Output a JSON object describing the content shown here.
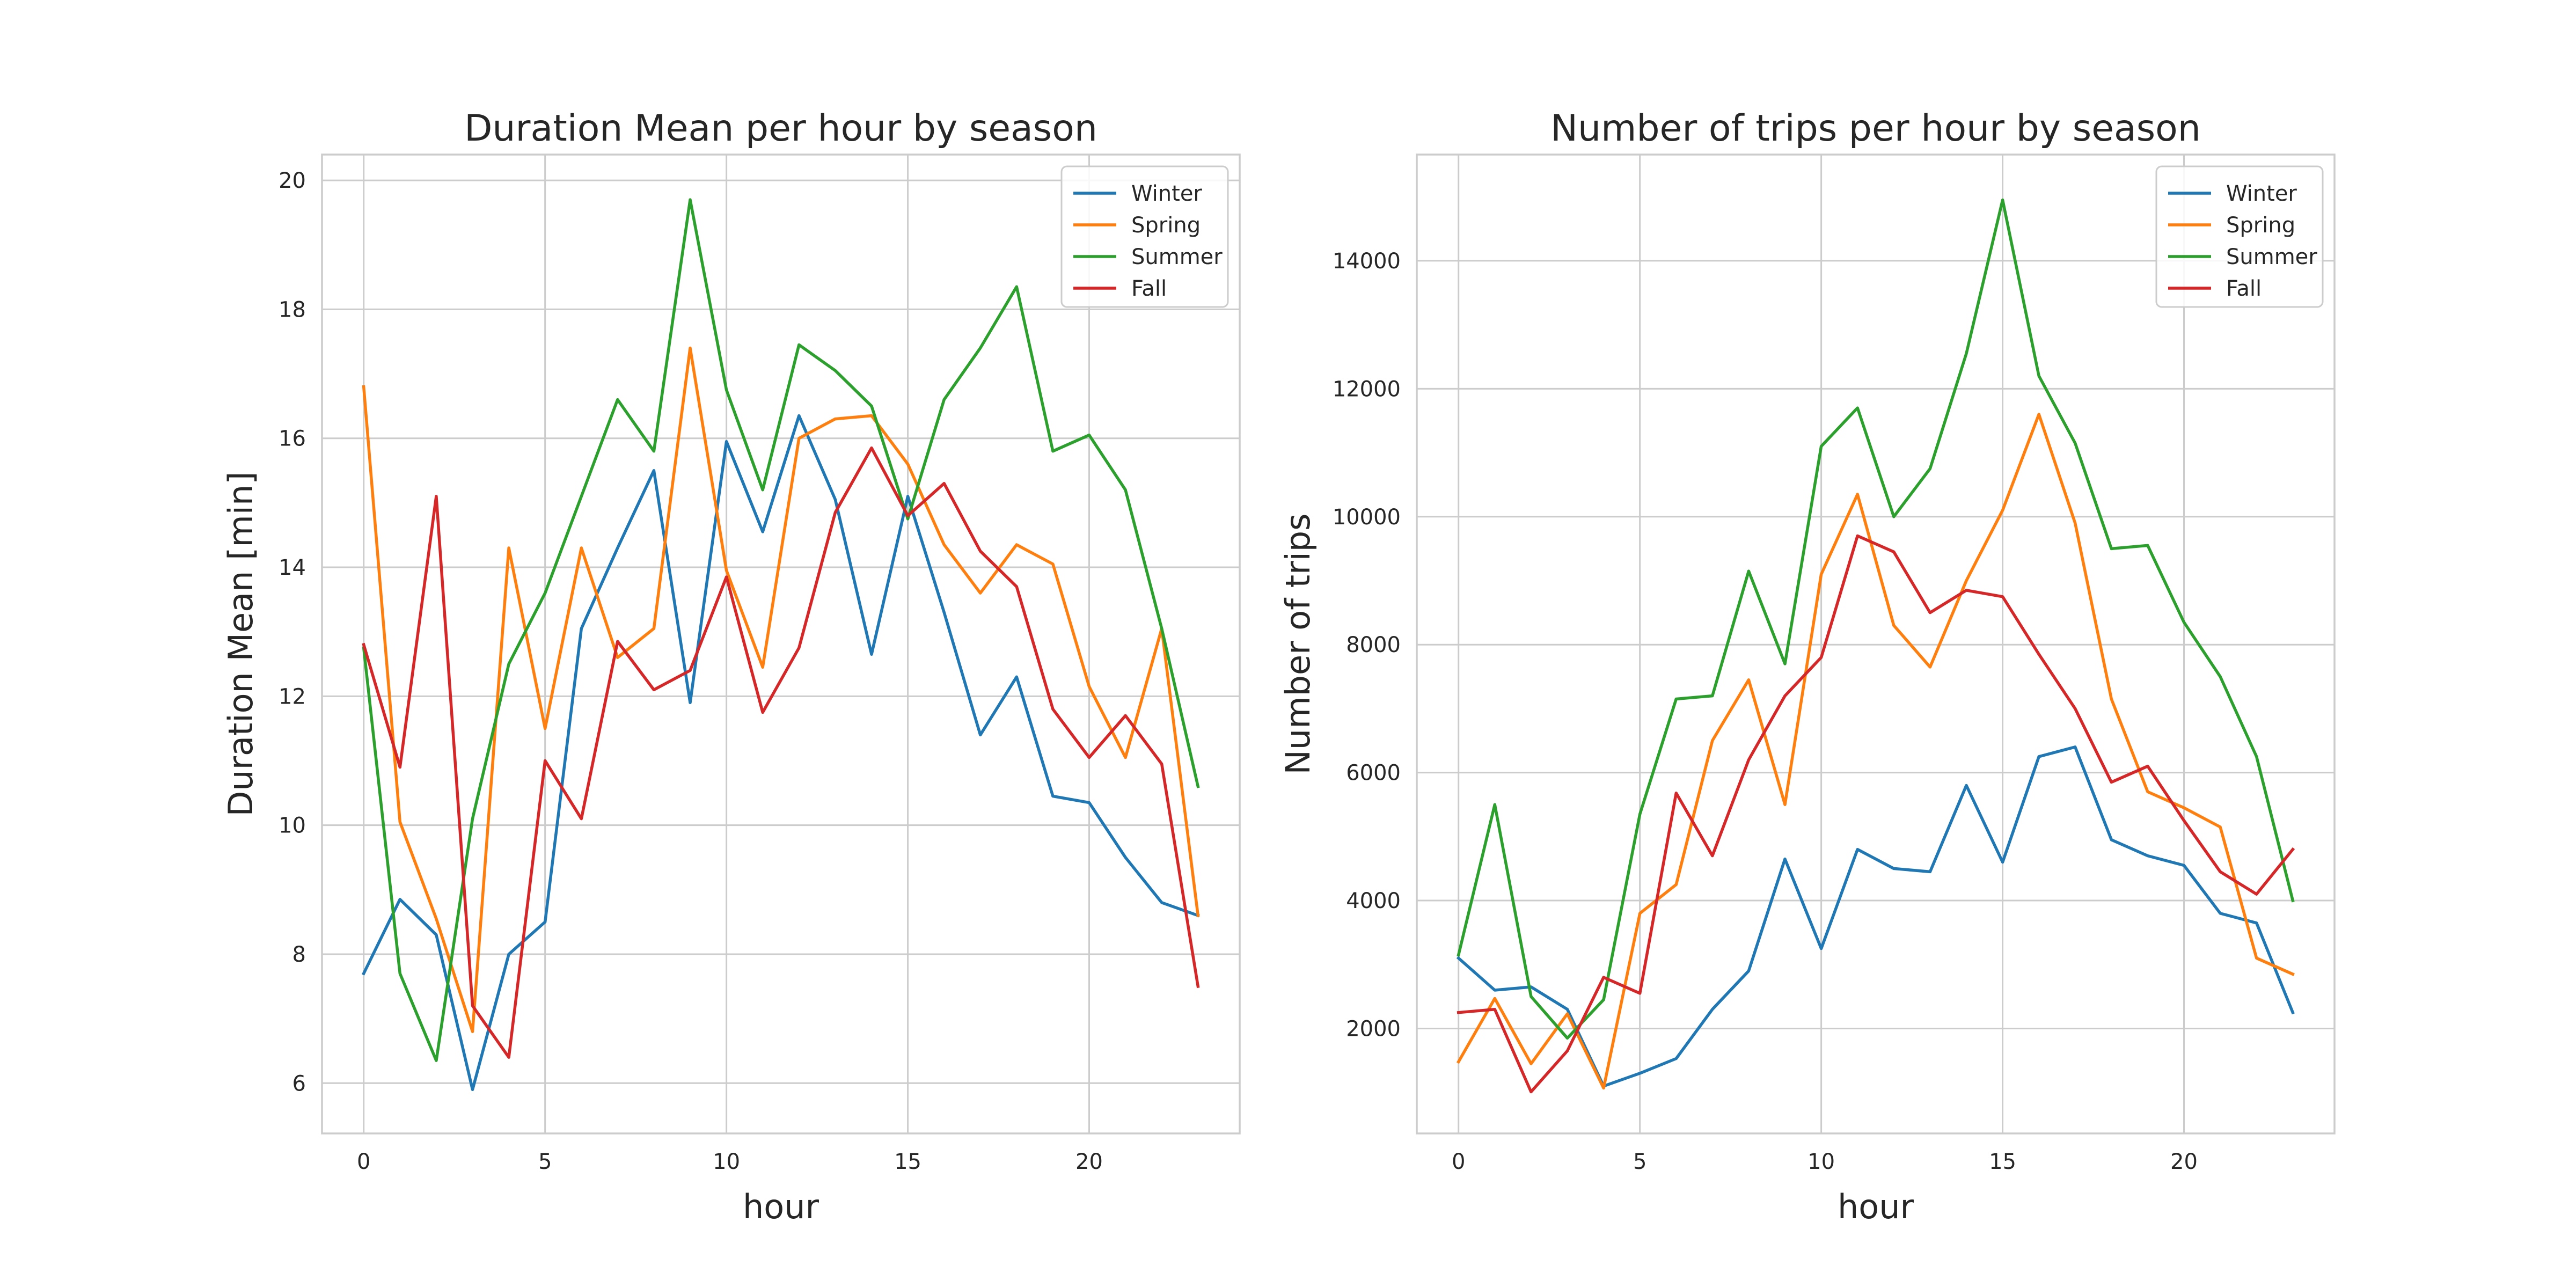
{
  "chart_data": [
    {
      "type": "line",
      "title": "Duration Mean per hour by season",
      "xlabel": "hour",
      "ylabel": "Duration Mean [min]",
      "xlim": [
        -1.15,
        24.15
      ],
      "ylim": [
        5.22,
        20.4
      ],
      "xticks": [
        0,
        5,
        10,
        15,
        20
      ],
      "yticks": [
        6,
        8,
        10,
        12,
        14,
        16,
        18,
        20
      ],
      "grid": true,
      "legend": "top-right",
      "x": [
        0,
        1,
        2,
        3,
        4,
        5,
        6,
        7,
        8,
        9,
        10,
        11,
        12,
        13,
        14,
        15,
        16,
        17,
        18,
        19,
        20,
        21,
        22,
        23
      ],
      "series": [
        {
          "name": "Winter",
          "color": "#1f77b4",
          "values": [
            7.7,
            8.85,
            8.3,
            5.9,
            8.0,
            8.5,
            13.05,
            14.3,
            15.5,
            11.9,
            15.95,
            14.55,
            16.35,
            15.05,
            12.65,
            15.1,
            13.3,
            11.4,
            12.3,
            10.45,
            10.35,
            9.5,
            8.8,
            8.6
          ]
        },
        {
          "name": "Spring",
          "color": "#ff7f0e",
          "values": [
            16.8,
            10.05,
            8.55,
            6.8,
            14.3,
            11.5,
            14.3,
            12.6,
            13.05,
            17.4,
            13.95,
            12.45,
            16.0,
            16.3,
            16.35,
            15.6,
            14.35,
            13.6,
            14.35,
            14.05,
            12.15,
            11.05,
            13.05,
            8.6
          ]
        },
        {
          "name": "Summer",
          "color": "#2ca02c",
          "values": [
            12.75,
            7.7,
            6.35,
            10.1,
            12.5,
            13.6,
            15.1,
            16.6,
            15.8,
            19.7,
            16.75,
            15.2,
            17.45,
            17.05,
            16.5,
            14.75,
            16.6,
            17.4,
            18.35,
            15.8,
            16.05,
            15.2,
            13.05,
            10.6
          ]
        },
        {
          "name": "Fall",
          "color": "#d62728",
          "values": [
            12.8,
            10.9,
            15.1,
            7.2,
            6.4,
            11.0,
            10.1,
            12.85,
            12.1,
            12.4,
            13.85,
            11.75,
            12.75,
            14.85,
            15.85,
            14.8,
            15.3,
            14.25,
            13.7,
            11.8,
            11.05,
            11.7,
            10.95,
            7.5
          ]
        }
      ]
    },
    {
      "type": "line",
      "title": "Number of trips per hour by season",
      "xlabel": "hour",
      "ylabel": "Number of trips",
      "xlim": [
        -1.15,
        24.15
      ],
      "ylim": [
        360,
        15660
      ],
      "xticks": [
        0,
        5,
        10,
        15,
        20
      ],
      "yticks": [
        2000,
        4000,
        6000,
        8000,
        10000,
        12000,
        14000
      ],
      "grid": true,
      "legend": "top-right",
      "x": [
        0,
        1,
        2,
        3,
        4,
        5,
        6,
        7,
        8,
        9,
        10,
        11,
        12,
        13,
        14,
        15,
        16,
        17,
        18,
        19,
        20,
        21,
        22,
        23
      ],
      "series": [
        {
          "name": "Winter",
          "color": "#1f77b4",
          "values": [
            3100,
            2600,
            2650,
            2300,
            1100,
            1300,
            1530,
            2300,
            2900,
            4650,
            3250,
            4800,
            4500,
            4450,
            5800,
            4600,
            6250,
            6400,
            4950,
            4700,
            4550,
            3800,
            3650,
            2250
          ]
        },
        {
          "name": "Spring",
          "color": "#ff7f0e",
          "values": [
            1480,
            2470,
            1450,
            2230,
            1070,
            3800,
            4250,
            6500,
            7450,
            5500,
            9100,
            10350,
            8300,
            7650,
            9000,
            10100,
            11600,
            9900,
            7150,
            5700,
            5450,
            5150,
            3100,
            2850
          ]
        },
        {
          "name": "Summer",
          "color": "#2ca02c",
          "values": [
            3150,
            5500,
            2500,
            1850,
            2450,
            5350,
            7150,
            7200,
            9150,
            7700,
            11100,
            11700,
            10000,
            10750,
            12550,
            14950,
            12200,
            11150,
            9500,
            9550,
            8350,
            7500,
            6250,
            4000
          ]
        },
        {
          "name": "Fall",
          "color": "#d62728",
          "values": [
            2250,
            2300,
            1010,
            1650,
            2800,
            2550,
            5680,
            4700,
            6200,
            7200,
            7800,
            9700,
            9450,
            8500,
            8850,
            8750,
            7850,
            7000,
            5850,
            6100,
            5250,
            4450,
            4100,
            4800
          ]
        }
      ]
    }
  ]
}
